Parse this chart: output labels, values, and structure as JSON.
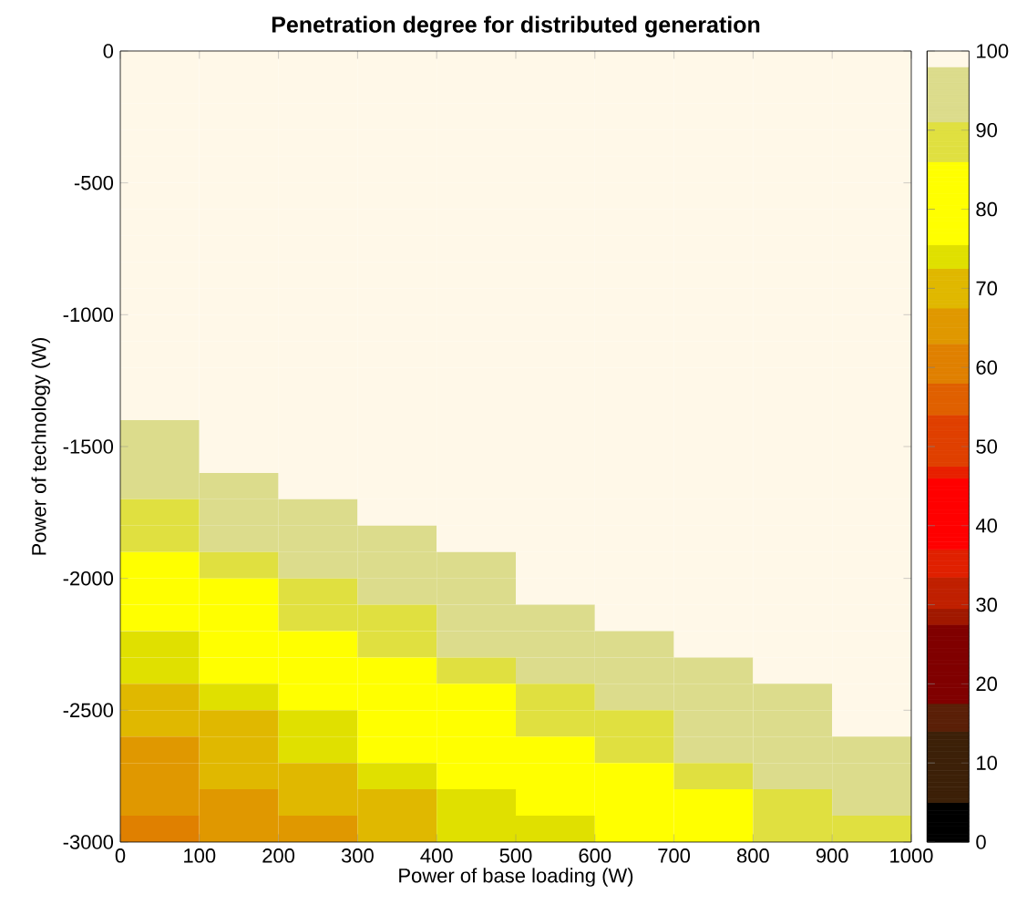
{
  "chart_data": {
    "type": "heatmap",
    "title": "Penetration degree for distributed generation",
    "xlabel": "Power of base loading (W)",
    "ylabel": "Power of technology (W)",
    "x": [
      50,
      150,
      250,
      350,
      450,
      550,
      650,
      750,
      850,
      950
    ],
    "y": [
      -50,
      -150,
      -250,
      -350,
      -450,
      -550,
      -650,
      -750,
      -850,
      -950,
      -1050,
      -1150,
      -1250,
      -1350,
      -1450,
      -1550,
      -1650,
      -1750,
      -1850,
      -1950,
      -2050,
      -2150,
      -2250,
      -2350,
      -2450,
      -2550,
      -2650,
      -2750,
      -2850,
      -2950
    ],
    "xlim": [
      0,
      1000
    ],
    "xticks": [
      0,
      100,
      200,
      300,
      400,
      500,
      600,
      700,
      800,
      900,
      1000
    ],
    "ylim": [
      -3000,
      0
    ],
    "yticks": [
      -3000,
      -2500,
      -2000,
      -1500,
      -1000,
      -500,
      0
    ],
    "clim": [
      0,
      100
    ],
    "cticks": [
      0,
      10,
      20,
      30,
      40,
      50,
      60,
      70,
      80,
      90,
      100
    ],
    "cells": [
      [
        100,
        100,
        100,
        100,
        100,
        100,
        100,
        100,
        100,
        100
      ],
      [
        100,
        100,
        100,
        100,
        100,
        100,
        100,
        100,
        100,
        100
      ],
      [
        100,
        100,
        100,
        100,
        100,
        100,
        100,
        100,
        100,
        100
      ],
      [
        100,
        100,
        100,
        100,
        100,
        100,
        100,
        100,
        100,
        100
      ],
      [
        100,
        100,
        100,
        100,
        100,
        100,
        100,
        100,
        100,
        100
      ],
      [
        100,
        100,
        100,
        100,
        100,
        100,
        100,
        100,
        100,
        100
      ],
      [
        100,
        100,
        100,
        100,
        100,
        100,
        100,
        100,
        100,
        100
      ],
      [
        100,
        100,
        100,
        100,
        100,
        100,
        100,
        100,
        100,
        100
      ],
      [
        100,
        100,
        100,
        100,
        100,
        100,
        100,
        100,
        100,
        100
      ],
      [
        100,
        100,
        100,
        100,
        100,
        100,
        100,
        100,
        100,
        100
      ],
      [
        100,
        100,
        100,
        100,
        100,
        100,
        100,
        100,
        100,
        100
      ],
      [
        100,
        100,
        100,
        100,
        100,
        100,
        100,
        100,
        100,
        100
      ],
      [
        100,
        100,
        100,
        100,
        100,
        100,
        100,
        100,
        100,
        100
      ],
      [
        100,
        100,
        100,
        100,
        100,
        100,
        100,
        100,
        100,
        100
      ],
      [
        95,
        100,
        100,
        100,
        100,
        100,
        100,
        100,
        100,
        100
      ],
      [
        95,
        100,
        100,
        100,
        100,
        100,
        100,
        100,
        100,
        100
      ],
      [
        95,
        95,
        100,
        100,
        100,
        100,
        100,
        100,
        100,
        100
      ],
      [
        88,
        95,
        95,
        100,
        100,
        100,
        100,
        100,
        100,
        100
      ],
      [
        88,
        95,
        95,
        95,
        100,
        100,
        100,
        100,
        100,
        100
      ],
      [
        80,
        88,
        95,
        95,
        95,
        100,
        100,
        100,
        100,
        100
      ],
      [
        80,
        80,
        88,
        95,
        95,
        100,
        100,
        100,
        100,
        100
      ],
      [
        80,
        80,
        88,
        88,
        95,
        95,
        100,
        100,
        100,
        100
      ],
      [
        74,
        80,
        80,
        88,
        95,
        95,
        95,
        100,
        100,
        100
      ],
      [
        74,
        80,
        80,
        80,
        88,
        95,
        95,
        95,
        100,
        100
      ],
      [
        70,
        74,
        80,
        80,
        80,
        88,
        95,
        95,
        95,
        100
      ],
      [
        70,
        70,
        74,
        80,
        80,
        88,
        88,
        95,
        95,
        100
      ],
      [
        65,
        70,
        74,
        80,
        80,
        80,
        88,
        95,
        95,
        95
      ],
      [
        65,
        70,
        70,
        74,
        80,
        80,
        80,
        88,
        95,
        95
      ],
      [
        65,
        65,
        70,
        70,
        74,
        80,
        80,
        80,
        88,
        95
      ],
      [
        60,
        65,
        65,
        70,
        74,
        74,
        80,
        80,
        88,
        88
      ]
    ]
  }
}
